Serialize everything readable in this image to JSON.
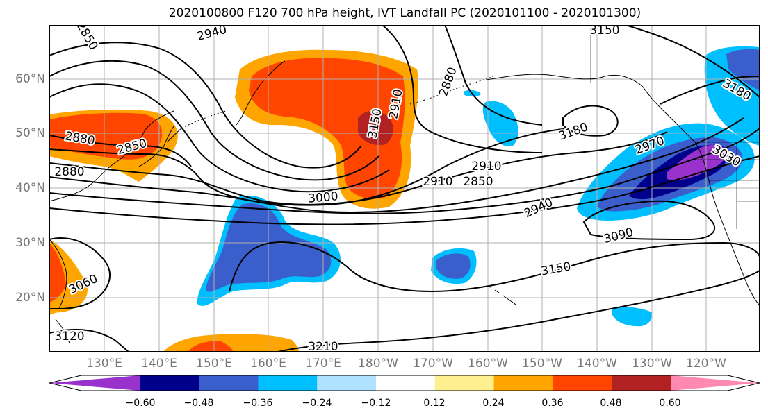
{
  "title": "2020100800 F120 700 hPa height, IVT Landfall PC (2020101100 - 2020101300)",
  "lat_labels": [
    "60°N",
    "50°N",
    "40°N",
    "30°N",
    "20°N"
  ],
  "lon_labels": [
    "130°E",
    "140°E",
    "150°E",
    "160°E",
    "170°E",
    "180°W",
    "170°W",
    "160°W",
    "150°W",
    "140°W",
    "130°W",
    "120°W"
  ],
  "contour_labels": [
    "2850",
    "2940",
    "2880",
    "2910",
    "2880",
    "2850",
    "2880",
    "2910",
    "3000",
    "2940",
    "2970",
    "3030",
    "3090",
    "3150",
    "3060",
    "3120",
    "3210",
    "3180",
    "3180",
    "3150",
    "3150",
    "2850",
    "2910"
  ],
  "colorbar": {
    "colors": [
      "#9932cc",
      "#00008b",
      "#3a5fcd",
      "#00bfff",
      "#b0e2ff",
      "#ffffff",
      "#fff08f",
      "#ffa500",
      "#ff4500",
      "#b22222",
      "#ff89b0"
    ],
    "tick_labels": [
      "−0.60",
      "−0.48",
      "−0.36",
      "−0.24",
      "−0.12",
      "0.12",
      "0.24",
      "0.36",
      "0.48",
      "0.60"
    ]
  },
  "colors": {
    "coast": "#000000",
    "grid": "#b0b0b0",
    "contour": "#000000",
    "axis_label": "#777777"
  }
}
